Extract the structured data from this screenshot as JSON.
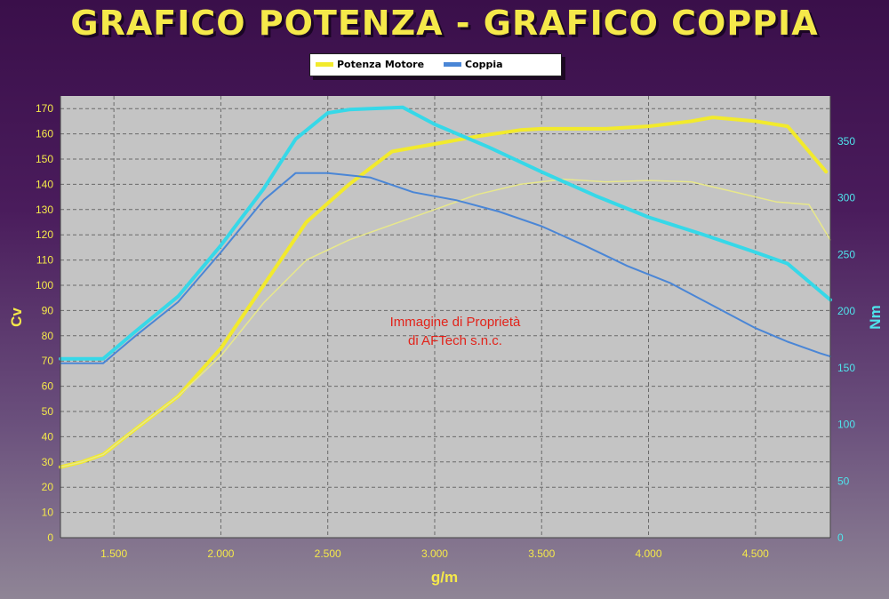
{
  "title": "GRAFICO POTENZA - GRAFICO COPPIA",
  "legend": [
    {
      "label": "Potenza Motore",
      "color": "#f2ea2c"
    },
    {
      "label": "Coppia",
      "color": "#4a86d6"
    }
  ],
  "watermark": [
    "Immagine di Proprietà",
    "di AFTech s.n.c."
  ],
  "chart_data": {
    "type": "line",
    "xlabel": "g/m",
    "ylabel": "Cv",
    "y2label": "Nm",
    "xlim": [
      1250,
      4850
    ],
    "ylim": [
      0,
      175
    ],
    "y2lim": [
      0,
      390
    ],
    "x_ticks": [
      1500,
      2000,
      2500,
      3000,
      3500,
      4000,
      4500
    ],
    "x_tick_labels": [
      "1.500",
      "2.000",
      "2.500",
      "3.000",
      "3.500",
      "4.000",
      "4.500"
    ],
    "y_ticks": [
      0,
      10,
      20,
      30,
      40,
      50,
      60,
      70,
      80,
      90,
      100,
      110,
      120,
      130,
      140,
      150,
      160,
      170
    ],
    "y2_ticks": [
      0,
      50,
      100,
      150,
      200,
      250,
      300,
      350
    ],
    "grid": true,
    "legend_position": "top-center",
    "series": [
      {
        "name": "Potenza Motore",
        "axis": "left",
        "color": "#f2ea2c",
        "width": 4,
        "points": [
          [
            1250,
            28
          ],
          [
            1350,
            30
          ],
          [
            1450,
            33
          ],
          [
            1600,
            43
          ],
          [
            1800,
            56
          ],
          [
            2000,
            75
          ],
          [
            2200,
            100
          ],
          [
            2400,
            125
          ],
          [
            2600,
            140
          ],
          [
            2800,
            153
          ],
          [
            3000,
            156
          ],
          [
            3200,
            159
          ],
          [
            3400,
            161.5
          ],
          [
            3500,
            162
          ],
          [
            3800,
            162
          ],
          [
            4000,
            163
          ],
          [
            4200,
            165
          ],
          [
            4300,
            166.5
          ],
          [
            4500,
            165
          ],
          [
            4650,
            163
          ],
          [
            4830,
            145
          ]
        ]
      },
      {
        "name": "",
        "axis": "left",
        "color": "#e8e88a",
        "width": 1.5,
        "points": [
          [
            1250,
            28
          ],
          [
            1350,
            30
          ],
          [
            1450,
            33
          ],
          [
            1600,
            43
          ],
          [
            1800,
            56
          ],
          [
            2000,
            72
          ],
          [
            2200,
            93
          ],
          [
            2400,
            110
          ],
          [
            2600,
            118
          ],
          [
            2800,
            124
          ],
          [
            3000,
            130
          ],
          [
            3200,
            136
          ],
          [
            3400,
            140
          ],
          [
            3600,
            142
          ],
          [
            3800,
            141
          ],
          [
            4000,
            141.5
          ],
          [
            4200,
            141
          ],
          [
            4400,
            137
          ],
          [
            4600,
            133
          ],
          [
            4750,
            132
          ],
          [
            4870,
            118
          ]
        ]
      },
      {
        "name": "",
        "axis": "right",
        "color": "#36d8e8",
        "width": 4,
        "points": [
          [
            1250,
            158
          ],
          [
            1450,
            158
          ],
          [
            1600,
            182
          ],
          [
            1800,
            213
          ],
          [
            2000,
            258
          ],
          [
            2200,
            308
          ],
          [
            2350,
            352
          ],
          [
            2500,
            375
          ],
          [
            2600,
            378
          ],
          [
            2850,
            380
          ],
          [
            3000,
            365
          ],
          [
            3250,
            345
          ],
          [
            3500,
            323
          ],
          [
            3750,
            302
          ],
          [
            4000,
            283
          ],
          [
            4250,
            268
          ],
          [
            4500,
            252
          ],
          [
            4650,
            242
          ],
          [
            4850,
            210
          ]
        ]
      },
      {
        "name": "Coppia",
        "axis": "right",
        "color": "#4a86d6",
        "width": 2,
        "points": [
          [
            1250,
            154
          ],
          [
            1450,
            154
          ],
          [
            1600,
            178
          ],
          [
            1800,
            208
          ],
          [
            2000,
            252
          ],
          [
            2200,
            298
          ],
          [
            2350,
            322
          ],
          [
            2500,
            322
          ],
          [
            2700,
            318
          ],
          [
            2900,
            305
          ],
          [
            3100,
            298
          ],
          [
            3300,
            288
          ],
          [
            3500,
            275
          ],
          [
            3700,
            258
          ],
          [
            3900,
            240
          ],
          [
            4100,
            225
          ],
          [
            4300,
            205
          ],
          [
            4500,
            185
          ],
          [
            4650,
            173
          ],
          [
            4800,
            163
          ],
          [
            4900,
            160
          ]
        ]
      }
    ]
  }
}
